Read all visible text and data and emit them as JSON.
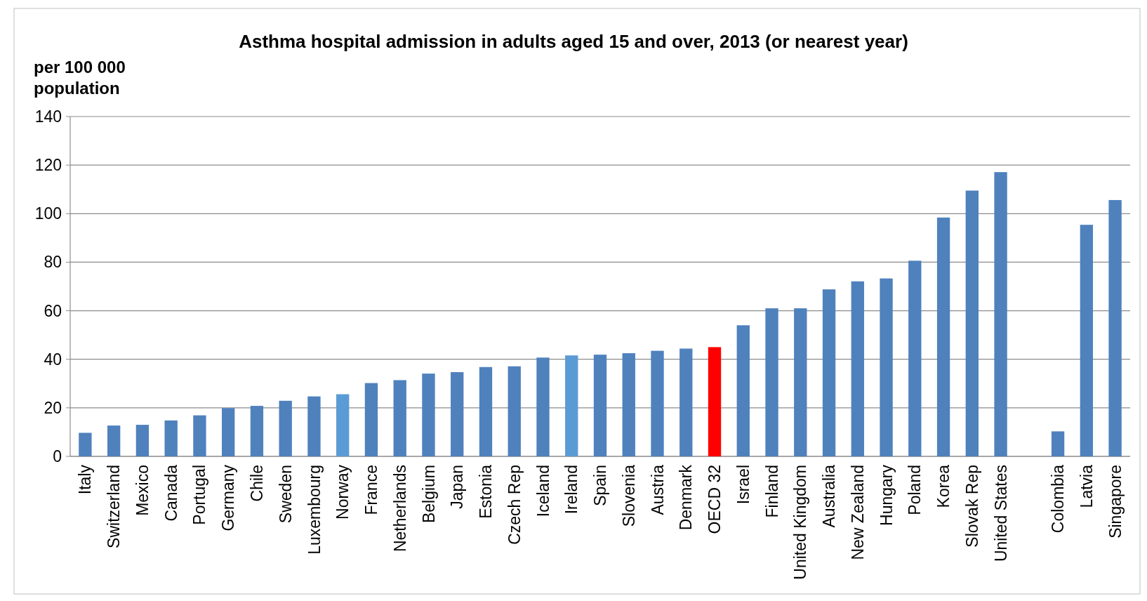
{
  "chart_data": {
    "type": "bar",
    "title": "Asthma hospital admission in adults aged 15 and over, 2013 (or nearest year)",
    "ylabel": "per 100 000 population",
    "categories": [
      "Italy",
      "Switzerland",
      "Mexico",
      "Canada",
      "Portugal",
      "Germany",
      "Chile",
      "Sweden",
      "Luxembourg",
      "Norway",
      "France",
      "Netherlands",
      "Belgium",
      "Japan",
      "Estonia",
      "Czech Rep",
      "Iceland",
      "Ireland",
      "Spain",
      "Slovenia",
      "Austria",
      "Denmark",
      "OECD 32",
      "Israel",
      "Finland",
      "United Kingdom",
      "Australia",
      "New Zealand",
      "Hungary",
      "Poland",
      "Korea",
      "Slovak Rep",
      "United States",
      null,
      "Colombia",
      "Latvia",
      "Singapore"
    ],
    "values": [
      9.7,
      12.7,
      13,
      14.8,
      16.9,
      19.9,
      20.8,
      22.9,
      24.7,
      25.6,
      30.2,
      31.4,
      34.1,
      34.7,
      36.8,
      37.1,
      40.7,
      41.6,
      41.9,
      42.5,
      43.5,
      44.4,
      45,
      54,
      61,
      61,
      68.8,
      72.1,
      73.3,
      80.6,
      98.4,
      109.5,
      117.1,
      null,
      10.3,
      95.4,
      105.6
    ],
    "colors": [
      "#4f81bd",
      "#4f81bd",
      "#4f81bd",
      "#4f81bd",
      "#4f81bd",
      "#4f81bd",
      "#4f81bd",
      "#4f81bd",
      "#4f81bd",
      "#5b9bd5",
      "#4f81bd",
      "#4f81bd",
      "#4f81bd",
      "#4f81bd",
      "#4f81bd",
      "#4f81bd",
      "#4f81bd",
      "#5b9bd5",
      "#4f81bd",
      "#4f81bd",
      "#4f81bd",
      "#4f81bd",
      "#ff0000",
      "#4f81bd",
      "#4f81bd",
      "#4f81bd",
      "#4f81bd",
      "#4f81bd",
      "#4f81bd",
      "#4f81bd",
      "#4f81bd",
      "#4f81bd",
      "#4f81bd",
      null,
      "#4f81bd",
      "#4f81bd",
      "#4f81bd"
    ],
    "ylim": [
      0,
      140
    ],
    "yticks": [
      0,
      20,
      40,
      60,
      80,
      100,
      120,
      140
    ],
    "grid": "y"
  }
}
